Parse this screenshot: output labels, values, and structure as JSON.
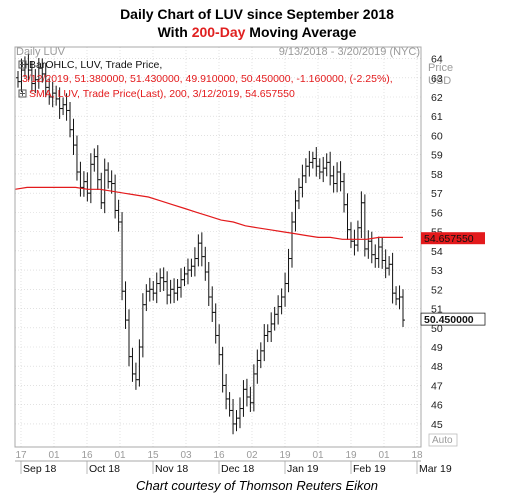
{
  "heading": {
    "line1": "Daily Chart of LUV since September 2018",
    "line2_pre": "With ",
    "line2_highlight": "200-Day",
    "line2_post": " Moving Average"
  },
  "panel": {
    "chart_name": "Daily LUV",
    "date_range": "9/13/2018 - 3/20/2019 (NYC)",
    "price_label_1": "Price",
    "price_label_2": "USD",
    "auto_label": "Auto"
  },
  "legend": {
    "ohlc_line1": "BarOHLC, LUV, Trade Price,",
    "ohlc_line2": "3/12/2019, 51.380000, 51.430000, 49.910000, 50.450000, -1.160000, (-2.25%),",
    "sma_line": "SMA, LUV, Trade Price(Last), 200, 3/12/2019, 54.657550"
  },
  "caption": "Chart courtesy of Thomson Reuters Eikon",
  "colors": {
    "price_bars": "#111111",
    "sma": "#e31a1c",
    "grid": "#d0d0d0",
    "sma_tag": "#e31a1c",
    "accent": "#e02020"
  },
  "chart_data": {
    "type": "line",
    "title": "Daily Chart of LUV since September 2018",
    "ylabel": "Price USD",
    "ylim": [
      43.8,
      64.6
    ],
    "y_ticks": [
      45,
      46,
      47,
      48,
      49,
      50,
      51,
      52,
      53,
      54,
      55,
      56,
      57,
      58,
      59,
      60,
      61,
      62,
      63,
      64
    ],
    "x_day_ticks": [
      "17",
      "01",
      "16",
      "01",
      "15",
      "03",
      "16",
      "02",
      "19",
      "01",
      "19",
      "01",
      "18"
    ],
    "x_month_ticks": [
      "Sep 18",
      "Oct 18",
      "Nov 18",
      "Dec 18",
      "Jan 19",
      "Feb 19",
      "Mar 19"
    ],
    "last_price_tag": "50.450000",
    "sma_tag": "54.657550",
    "series": [
      {
        "name": "BarOHLC, LUV, Trade Price",
        "style": "ohlc",
        "values": [
          62.8,
          63.4,
          63.7,
          63.4,
          62.7,
          62.9,
          63.5,
          63.2,
          62.5,
          62.0,
          62.2,
          61.9,
          61.4,
          61.6,
          61.3,
          60.3,
          59.5,
          58.1,
          57.3,
          57.6,
          57.0,
          58.5,
          58.9,
          57.7,
          56.5,
          58.2,
          57.6,
          57.5,
          56.1,
          55.5,
          51.9,
          50.4,
          48.5,
          47.6,
          47.3,
          49.0,
          51.2,
          51.9,
          52.0,
          51.8,
          52.3,
          52.6,
          52.4,
          51.7,
          52.0,
          51.8,
          52.1,
          52.5,
          52.8,
          53.0,
          53.2,
          53.6,
          54.4,
          53.7,
          52.9,
          51.6,
          50.8,
          49.6,
          48.6,
          47.0,
          46.3,
          45.7,
          45.0,
          45.3,
          45.8,
          46.8,
          46.4,
          46.1,
          47.6,
          48.3,
          48.8,
          49.6,
          49.8,
          50.2,
          50.7,
          51.1,
          51.6,
          52.3,
          53.6,
          55.5,
          56.6,
          57.3,
          57.9,
          58.4,
          58.6,
          58.8,
          58.4,
          58.1,
          58.3,
          58.6,
          57.9,
          57.5,
          58.1,
          57.6,
          56.4,
          55.1,
          54.5,
          54.3,
          55.2,
          56.5,
          54.1,
          54.5,
          53.8,
          53.6,
          54.2,
          53.5,
          53.1,
          53.3,
          51.8,
          51.5,
          51.6,
          50.4
        ]
      },
      {
        "name": "SMA, LUV, Trade Price(Last), 200",
        "style": "line",
        "values": [
          57.2,
          57.3,
          57.3,
          57.3,
          57.3,
          57.3,
          57.2,
          57.2,
          57.1,
          57.0,
          56.9,
          56.8,
          56.6,
          56.4,
          56.2,
          56.0,
          55.8,
          55.6,
          55.5,
          55.3,
          55.2,
          55.1,
          55.0,
          54.9,
          54.8,
          54.7,
          54.7,
          54.6,
          54.6,
          54.6,
          54.7,
          54.7,
          54.7
        ]
      }
    ]
  }
}
